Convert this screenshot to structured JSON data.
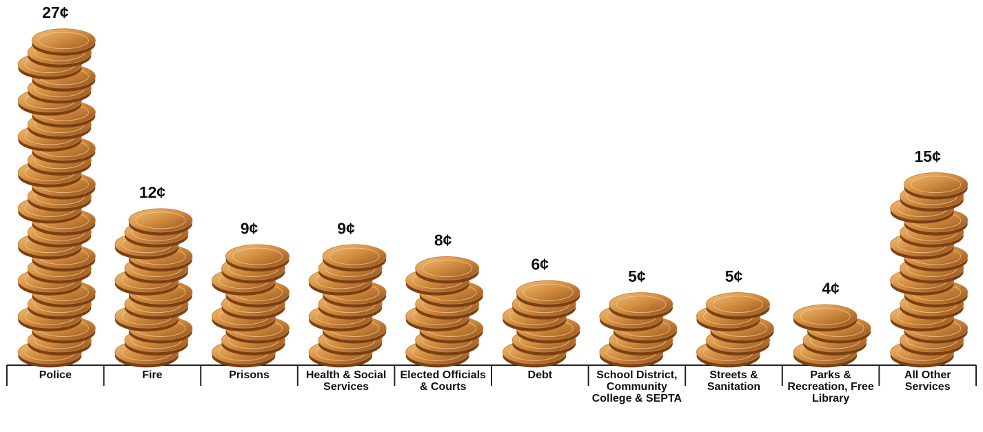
{
  "chart_data": {
    "type": "pictograph",
    "categories": [
      "Police",
      "Fire",
      "Prisons",
      "Health & Social Services",
      "Elected Officials & Courts",
      "Debt",
      "School District, Community College & SEPTA",
      "Streets & Sanitation",
      "Parks & Recreation, Free Library",
      "All Other Services"
    ],
    "values": [
      27,
      12,
      9,
      9,
      8,
      6,
      5,
      5,
      4,
      15
    ],
    "value_labels": [
      "27¢",
      "12¢",
      "9¢",
      "9¢",
      "8¢",
      "6¢",
      "5¢",
      "5¢",
      "4¢",
      "15¢"
    ],
    "color": "#c7803a"
  }
}
